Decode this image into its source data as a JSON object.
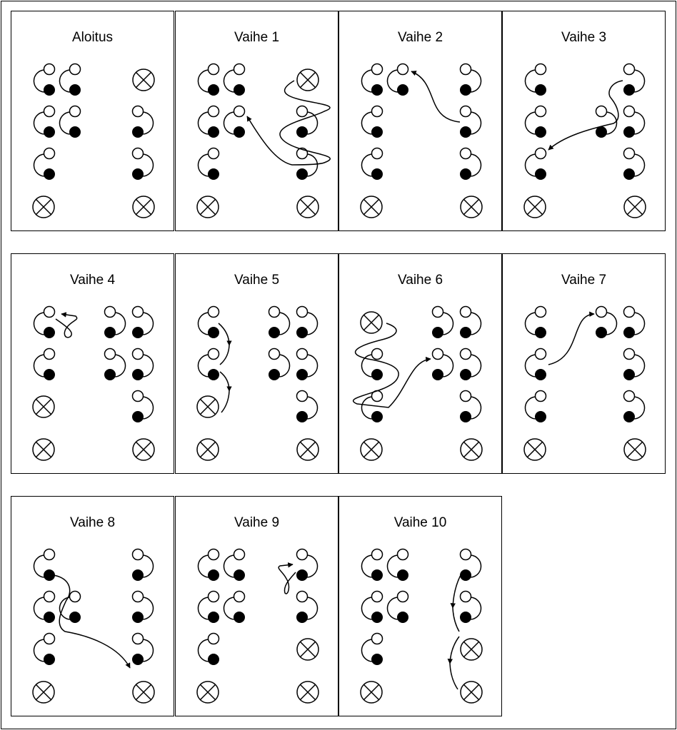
{
  "colors": {
    "line": "#000000",
    "open_circle": "#ffffff",
    "filled_circle": "#000000"
  },
  "panels": [
    {
      "title": "Aloitus",
      "pieces": [
        {
          "type": "pair",
          "col": 0,
          "row": 0,
          "facing": "left"
        },
        {
          "type": "pair",
          "col": 1,
          "row": 0,
          "facing": "left"
        },
        {
          "type": "pair",
          "col": 0,
          "row": 1,
          "facing": "left"
        },
        {
          "type": "pair",
          "col": 1,
          "row": 1,
          "facing": "left"
        },
        {
          "type": "pair",
          "col": 0,
          "row": 2,
          "facing": "left"
        },
        {
          "type": "crossed",
          "col": 0,
          "row": 3
        },
        {
          "type": "crossed",
          "col": 3,
          "row": 0
        },
        {
          "type": "pair",
          "col": 3,
          "row": 1,
          "facing": "right"
        },
        {
          "type": "pair",
          "col": 3,
          "row": 2,
          "facing": "right"
        },
        {
          "type": "crossed",
          "col": 3,
          "row": 3
        }
      ]
    },
    {
      "title": "Vaihe 1",
      "pieces": [
        {
          "type": "pair",
          "col": 0,
          "row": 0,
          "facing": "left"
        },
        {
          "type": "pair",
          "col": 1,
          "row": 0,
          "facing": "left"
        },
        {
          "type": "pair",
          "col": 0,
          "row": 1,
          "facing": "left"
        },
        {
          "type": "pair",
          "col": 1,
          "row": 1,
          "facing": "left"
        },
        {
          "type": "pair",
          "col": 0,
          "row": 2,
          "facing": "left"
        },
        {
          "type": "crossed",
          "col": 0,
          "row": 3
        },
        {
          "type": "crossed",
          "col": 3,
          "row": 0
        },
        {
          "type": "pair",
          "col": 3,
          "row": 1,
          "facing": "right"
        },
        {
          "type": "pair",
          "col": 3,
          "row": 2,
          "facing": "right"
        },
        {
          "type": "crossed",
          "col": 3,
          "row": 3
        }
      ]
    },
    {
      "title": "Vaihe 2",
      "pieces": [
        {
          "type": "pair",
          "col": 0,
          "row": 0,
          "facing": "left"
        },
        {
          "type": "pair",
          "col": 1,
          "row": 0,
          "facing": "left"
        },
        {
          "type": "pair",
          "col": 0,
          "row": 1,
          "facing": "left"
        },
        {
          "type": "pair",
          "col": 0,
          "row": 2,
          "facing": "left"
        },
        {
          "type": "crossed",
          "col": 0,
          "row": 3
        },
        {
          "type": "pair",
          "col": 3,
          "row": 0,
          "facing": "right"
        },
        {
          "type": "pair",
          "col": 3,
          "row": 1,
          "facing": "right"
        },
        {
          "type": "pair",
          "col": 3,
          "row": 2,
          "facing": "right"
        },
        {
          "type": "crossed",
          "col": 3,
          "row": 3
        }
      ]
    },
    {
      "title": "Vaihe 3",
      "pieces": [
        {
          "type": "pair",
          "col": 0,
          "row": 0,
          "facing": "left"
        },
        {
          "type": "pair",
          "col": 0,
          "row": 1,
          "facing": "left"
        },
        {
          "type": "pair",
          "col": 0,
          "row": 2,
          "facing": "left"
        },
        {
          "type": "crossed",
          "col": 0,
          "row": 3
        },
        {
          "type": "pair",
          "col": 2,
          "row": 1,
          "facing": "right"
        },
        {
          "type": "pair",
          "col": 3,
          "row": 0,
          "facing": "right"
        },
        {
          "type": "pair",
          "col": 3,
          "row": 1,
          "facing": "right"
        },
        {
          "type": "pair",
          "col": 3,
          "row": 2,
          "facing": "right"
        },
        {
          "type": "crossed",
          "col": 3,
          "row": 3
        }
      ]
    },
    {
      "title": "Vaihe 4",
      "pieces": [
        {
          "type": "pair",
          "col": 0,
          "row": 0,
          "facing": "left"
        },
        {
          "type": "pair",
          "col": 0,
          "row": 1,
          "facing": "left"
        },
        {
          "type": "crossed",
          "col": 0,
          "row": 2
        },
        {
          "type": "crossed",
          "col": 0,
          "row": 3
        },
        {
          "type": "pair",
          "col": 2,
          "row": 0,
          "facing": "right"
        },
        {
          "type": "pair",
          "col": 3,
          "row": 0,
          "facing": "right"
        },
        {
          "type": "pair",
          "col": 2,
          "row": 1,
          "facing": "right"
        },
        {
          "type": "pair",
          "col": 3,
          "row": 1,
          "facing": "right"
        },
        {
          "type": "pair",
          "col": 3,
          "row": 2,
          "facing": "right"
        },
        {
          "type": "crossed",
          "col": 3,
          "row": 3
        }
      ]
    },
    {
      "title": "Vaihe 5",
      "pieces": [
        {
          "type": "pair",
          "col": 0,
          "row": 0,
          "facing": "left"
        },
        {
          "type": "pair",
          "col": 0,
          "row": 1,
          "facing": "left"
        },
        {
          "type": "crossed",
          "col": 0,
          "row": 2
        },
        {
          "type": "crossed",
          "col": 0,
          "row": 3
        },
        {
          "type": "pair",
          "col": 2,
          "row": 0,
          "facing": "right"
        },
        {
          "type": "pair",
          "col": 3,
          "row": 0,
          "facing": "right"
        },
        {
          "type": "pair",
          "col": 2,
          "row": 1,
          "facing": "right"
        },
        {
          "type": "pair",
          "col": 3,
          "row": 1,
          "facing": "right"
        },
        {
          "type": "pair",
          "col": 3,
          "row": 2,
          "facing": "right"
        },
        {
          "type": "crossed",
          "col": 3,
          "row": 3
        }
      ]
    },
    {
      "title": "Vaihe 6",
      "pieces": [
        {
          "type": "crossed",
          "col": 0,
          "row": 0
        },
        {
          "type": "pair",
          "col": 0,
          "row": 1,
          "facing": "left"
        },
        {
          "type": "pair",
          "col": 0,
          "row": 2,
          "facing": "left"
        },
        {
          "type": "crossed",
          "col": 0,
          "row": 3
        },
        {
          "type": "pair",
          "col": 2,
          "row": 0,
          "facing": "right"
        },
        {
          "type": "pair",
          "col": 3,
          "row": 0,
          "facing": "right"
        },
        {
          "type": "pair",
          "col": 2,
          "row": 1,
          "facing": "right"
        },
        {
          "type": "pair",
          "col": 3,
          "row": 1,
          "facing": "right"
        },
        {
          "type": "pair",
          "col": 3,
          "row": 2,
          "facing": "right"
        },
        {
          "type": "crossed",
          "col": 3,
          "row": 3
        }
      ]
    },
    {
      "title": "Vaihe 7",
      "pieces": [
        {
          "type": "pair",
          "col": 0,
          "row": 0,
          "facing": "left"
        },
        {
          "type": "pair",
          "col": 0,
          "row": 1,
          "facing": "left"
        },
        {
          "type": "pair",
          "col": 0,
          "row": 2,
          "facing": "left"
        },
        {
          "type": "crossed",
          "col": 0,
          "row": 3
        },
        {
          "type": "pair",
          "col": 2,
          "row": 0,
          "facing": "right"
        },
        {
          "type": "pair",
          "col": 3,
          "row": 0,
          "facing": "right"
        },
        {
          "type": "pair",
          "col": 3,
          "row": 1,
          "facing": "right"
        },
        {
          "type": "pair",
          "col": 3,
          "row": 2,
          "facing": "right"
        },
        {
          "type": "crossed",
          "col": 3,
          "row": 3
        }
      ]
    },
    {
      "title": "Vaihe 8",
      "pieces": [
        {
          "type": "pair",
          "col": 0,
          "row": 0,
          "facing": "left"
        },
        {
          "type": "pair",
          "col": 0,
          "row": 1,
          "facing": "left"
        },
        {
          "type": "pair",
          "col": 1,
          "row": 1,
          "facing": "left"
        },
        {
          "type": "pair",
          "col": 0,
          "row": 2,
          "facing": "left"
        },
        {
          "type": "crossed",
          "col": 0,
          "row": 3
        },
        {
          "type": "pair",
          "col": 3,
          "row": 0,
          "facing": "right"
        },
        {
          "type": "pair",
          "col": 3,
          "row": 1,
          "facing": "right"
        },
        {
          "type": "pair",
          "col": 3,
          "row": 2,
          "facing": "right"
        },
        {
          "type": "crossed",
          "col": 3,
          "row": 3
        }
      ]
    },
    {
      "title": "Vaihe 9",
      "pieces": [
        {
          "type": "pair",
          "col": 0,
          "row": 0,
          "facing": "left"
        },
        {
          "type": "pair",
          "col": 1,
          "row": 0,
          "facing": "left"
        },
        {
          "type": "pair",
          "col": 0,
          "row": 1,
          "facing": "left"
        },
        {
          "type": "pair",
          "col": 1,
          "row": 1,
          "facing": "left"
        },
        {
          "type": "pair",
          "col": 0,
          "row": 2,
          "facing": "left"
        },
        {
          "type": "crossed",
          "col": 0,
          "row": 3
        },
        {
          "type": "pair",
          "col": 3,
          "row": 0,
          "facing": "right"
        },
        {
          "type": "pair",
          "col": 3,
          "row": 1,
          "facing": "right"
        },
        {
          "type": "crossed",
          "col": 3,
          "row": 2
        },
        {
          "type": "crossed",
          "col": 3,
          "row": 3
        }
      ]
    },
    {
      "title": "Vaihe 10",
      "pieces": [
        {
          "type": "pair",
          "col": 0,
          "row": 0,
          "facing": "left"
        },
        {
          "type": "pair",
          "col": 1,
          "row": 0,
          "facing": "left"
        },
        {
          "type": "pair",
          "col": 0,
          "row": 1,
          "facing": "left"
        },
        {
          "type": "pair",
          "col": 1,
          "row": 1,
          "facing": "left"
        },
        {
          "type": "pair",
          "col": 0,
          "row": 2,
          "facing": "left"
        },
        {
          "type": "crossed",
          "col": 0,
          "row": 3
        },
        {
          "type": "pair",
          "col": 3,
          "row": 0,
          "facing": "right"
        },
        {
          "type": "pair",
          "col": 3,
          "row": 1,
          "facing": "right"
        },
        {
          "type": "crossed",
          "col": 3,
          "row": 2
        },
        {
          "type": "crossed",
          "col": 3,
          "row": 3
        }
      ]
    }
  ]
}
